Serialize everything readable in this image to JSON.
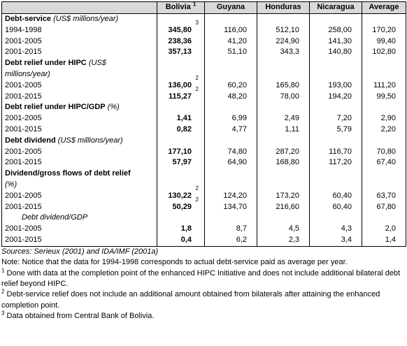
{
  "table": {
    "header": [
      "Bolivia",
      "Guyana",
      "Honduras",
      "Nicaragua",
      "Average"
    ],
    "header_note": "1",
    "sections": [
      {
        "label": "Debt-service",
        "unit": "(US$ millions/year)",
        "rows": [
          {
            "period": "1994-1998",
            "cells": [
              "345,80",
              "116,00",
              "512,10",
              "258,00",
              "170,20"
            ],
            "note": "3"
          },
          {
            "period": "2001-2005",
            "cells": [
              "238,36",
              "41,20",
              "224,90",
              "141,30",
              "99,40"
            ]
          },
          {
            "period": "2001-2015",
            "cells": [
              "357,13",
              "51,10",
              "343,3",
              "140,80",
              "102,80"
            ]
          }
        ]
      },
      {
        "label": "Debt relief under HIPC",
        "unit": "(US$ millions/year)",
        "rows": [
          {
            "period": "2001-2005",
            "cells": [
              "136,00",
              "60,20",
              "165,80",
              "193,00",
              "111,20"
            ],
            "note": "2"
          },
          {
            "period": "2001-2015",
            "cells": [
              "115,27",
              "48,20",
              "78,00",
              "194,20",
              "99,50"
            ],
            "note": "2"
          }
        ]
      },
      {
        "label": "Debt relief under HIPC/GDP",
        "unit": "(%)",
        "rows": [
          {
            "period": "2001-2005",
            "cells": [
              "1,41",
              "6,99",
              "2,49",
              "7,20",
              "2,90"
            ]
          },
          {
            "period": "2001-2015",
            "cells": [
              "0,82",
              "4,77",
              "1,11",
              "5,79",
              "2,20"
            ]
          }
        ]
      },
      {
        "label": "Debt dividend",
        "unit": "(US$ millions/year)",
        "rows": [
          {
            "period": "2001-2005",
            "cells": [
              "177,10",
              "74,80",
              "287,20",
              "116,70",
              "70,80"
            ]
          },
          {
            "period": "2001-2015",
            "cells": [
              "57,97",
              "64,90",
              "168,80",
              "117,20",
              "67,40"
            ]
          }
        ]
      },
      {
        "label": "Dividend/gross flows of debt relief",
        "unit": "(%)",
        "rows": [
          {
            "period": "2001-2005",
            "cells": [
              "130,22",
              "124,20",
              "173,20",
              "60,40",
              "63,70"
            ],
            "note": "2"
          },
          {
            "period": "2001-2015",
            "cells": [
              "50,29",
              "134,70",
              "216,60",
              "60,40",
              "67,80"
            ],
            "note": "2"
          }
        ]
      },
      {
        "label": "Debt dividend/GDP",
        "italic": true,
        "rows": [
          {
            "period": "2001-2005",
            "cells": [
              "1,8",
              "8,7",
              "4,5",
              "4,3",
              "2,0"
            ]
          },
          {
            "period": "2001-2015",
            "cells": [
              "0,4",
              "6,2",
              "2,3",
              "3,4",
              "1,4"
            ]
          }
        ]
      }
    ]
  },
  "footer": {
    "sources": "Sources: Serieux (2001) and IDA/IMF (2001a)",
    "note": "Note: Notice that the data for 1994-1998 corresponds to actual debt-service paid as average per year.",
    "footnotes": [
      {
        "mark": "1",
        "text": "Done with data at the completion point of the enhanced HIPC Initiative and does not include additional bilateral debt relief beyond HIPC."
      },
      {
        "mark": "2",
        "text": "Debt-service relief does not include an additional amount obtained from bilaterals after attaining the enhanced completion point."
      },
      {
        "mark": "3",
        "text": "Data obtained from Central Bank of Bolivia."
      }
    ]
  }
}
